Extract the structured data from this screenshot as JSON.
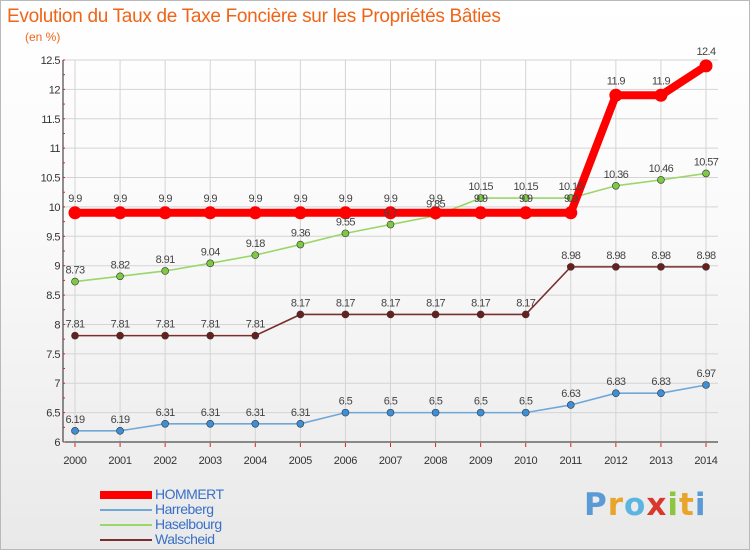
{
  "title": "Evolution du Taux de Taxe Foncière sur les Propriétés Bâties",
  "unit_label": "(en %)",
  "brand": {
    "text": "Proxiti",
    "letter_colors": [
      "#5b9ad5",
      "#e8a52a",
      "#5bb5e0",
      "#d9382c",
      "#8cc63f",
      "#e8a52a",
      "#5b9ad5"
    ]
  },
  "chart_data": {
    "type": "line",
    "title": "Evolution du Taux de Taxe Foncière sur les Propriétés Bâties",
    "ylabel": "(en %)",
    "xlabel": "",
    "categories": [
      "2000",
      "2001",
      "2002",
      "2003",
      "2004",
      "2005",
      "2006",
      "2007",
      "2008",
      "2009",
      "2010",
      "2011",
      "2012",
      "2013",
      "2014"
    ],
    "ylim": [
      6,
      12.5
    ],
    "yticks": [
      "6",
      "6.5",
      "7",
      "7.5",
      "8",
      "8.5",
      "9",
      "9.5",
      "10",
      "10.5",
      "11",
      "11.5",
      "12",
      "12.5"
    ],
    "grid": true,
    "series": [
      {
        "name": "HOMMERT",
        "color": "#ff0000",
        "highlight": true,
        "values": [
          9.9,
          9.9,
          9.9,
          9.9,
          9.9,
          9.9,
          9.9,
          9.9,
          9.9,
          9.9,
          9.9,
          9.9,
          11.9,
          11.9,
          12.4
        ],
        "labels": [
          "9.9",
          "9.9",
          "9.9",
          "9.9",
          "9.9",
          "9.9",
          "9.9",
          "9.9",
          "9.9",
          "9.9",
          "9.9",
          "9.9",
          "11.9",
          "11.9",
          "12.4"
        ]
      },
      {
        "name": "Harreberg",
        "color": "#6fa7d8",
        "marker": "#3d8fd8",
        "values": [
          6.19,
          6.19,
          6.31,
          6.31,
          6.31,
          6.31,
          6.5,
          6.5,
          6.5,
          6.5,
          6.5,
          6.63,
          6.83,
          6.83,
          6.97
        ],
        "labels": [
          "6.19",
          "6.19",
          "6.31",
          "6.31",
          "6.31",
          "6.31",
          "6.5",
          "6.5",
          "6.5",
          "6.5",
          "6.5",
          "6.63",
          "6.83",
          "6.83",
          "6.97"
        ]
      },
      {
        "name": "Haselbourg",
        "color": "#9bd66a",
        "marker": "#7ec843",
        "values": [
          8.73,
          8.82,
          8.91,
          9.04,
          9.18,
          9.36,
          9.55,
          9.7,
          9.85,
          10.15,
          10.15,
          10.15,
          10.36,
          10.46,
          10.57
        ],
        "labels": [
          "8.73",
          "8.82",
          "8.91",
          "9.04",
          "9.18",
          "9.36",
          "9.55",
          "9.7",
          "9.85",
          "10.15",
          "10.15",
          "10.15",
          "10.36",
          "10.46",
          "10.57"
        ]
      },
      {
        "name": "Walscheid",
        "color": "#7b2e2e",
        "marker": "#6a1f1f",
        "values": [
          7.81,
          7.81,
          7.81,
          7.81,
          7.81,
          8.17,
          8.17,
          8.17,
          8.17,
          8.17,
          8.17,
          8.98,
          8.98,
          8.98,
          8.98
        ],
        "labels": [
          "7.81",
          "7.81",
          "7.81",
          "7.81",
          "7.81",
          "8.17",
          "8.17",
          "8.17",
          "8.17",
          "8.17",
          "8.17",
          "8.98",
          "8.98",
          "8.98",
          "8.98"
        ]
      }
    ],
    "legend_position": "bottom-left"
  }
}
